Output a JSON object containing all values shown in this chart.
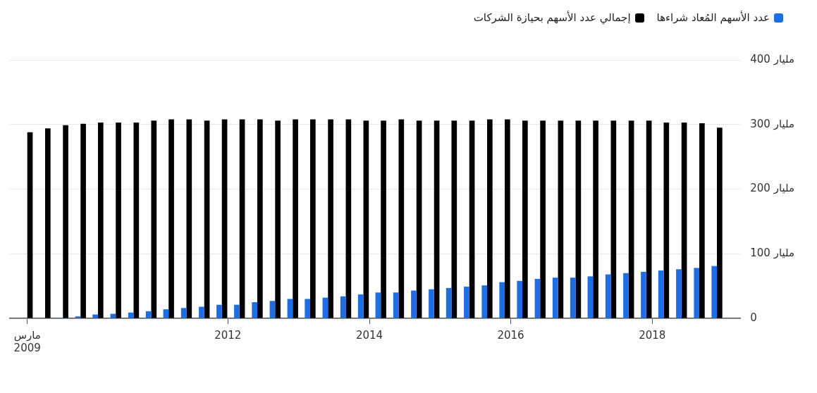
{
  "chart_data": {
    "type": "bar",
    "legend": "top right",
    "grid": "y",
    "x": [
      "2009-03",
      "2009-06",
      "2009-09",
      "2009-12",
      "2010-03",
      "2010-06",
      "2010-09",
      "2010-12",
      "2011-03",
      "2011-06",
      "2011-09",
      "2011-12",
      "2012-03",
      "2012-06",
      "2012-09",
      "2012-12",
      "2013-03",
      "2013-06",
      "2013-09",
      "2013-12",
      "2014-03",
      "2014-06",
      "2014-09",
      "2014-12",
      "2015-03",
      "2015-06",
      "2015-09",
      "2015-12",
      "2016-03",
      "2016-06",
      "2016-09",
      "2016-12",
      "2017-03",
      "2017-06",
      "2017-09",
      "2017-12",
      "2018-03",
      "2018-06",
      "2018-09",
      "2018-12"
    ],
    "xlim": [
      "2008-12",
      "2019-04"
    ],
    "xticks": [
      {
        "value": "2009-03",
        "label": "مارس 2009"
      },
      {
        "value": "2012",
        "label": "2012"
      },
      {
        "value": "2014",
        "label": "2014"
      },
      {
        "value": "2016",
        "label": "2016"
      },
      {
        "value": "2018",
        "label": "2018"
      }
    ],
    "ylim": [
      0,
      400
    ],
    "yticks": [
      0,
      {
        "value": 100,
        "label": "100 مليار"
      },
      {
        "value": 200,
        "label": "200 مليار"
      },
      {
        "value": 300,
        "label": "300 مليار"
      },
      {
        "value": 400,
        "label": "400 مليار"
      }
    ],
    "series": [
      {
        "name": "عدد الأسهم المُعاد شراءها",
        "color": "#1a6fe8",
        "values": [
          0,
          0,
          1,
          3,
          6,
          7,
          9,
          11,
          14,
          16,
          18,
          21,
          21,
          25,
          27,
          30,
          30,
          32,
          34,
          37,
          40,
          40,
          43,
          45,
          47,
          49,
          51,
          56,
          58,
          61,
          63,
          63,
          65,
          68,
          70,
          72,
          74,
          76,
          78,
          81
        ]
      },
      {
        "name": "إجمالي عدد الأسهم بحيازة الشركات",
        "color": "#000000",
        "values": [
          288,
          294,
          299,
          301,
          303,
          303,
          303,
          306,
          308,
          308,
          306,
          308,
          308,
          308,
          306,
          308,
          308,
          308,
          308,
          306,
          306,
          308,
          306,
          306,
          306,
          306,
          308,
          308,
          306,
          306,
          306,
          306,
          306,
          306,
          306,
          306,
          303,
          303,
          302,
          295
        ]
      }
    ]
  }
}
